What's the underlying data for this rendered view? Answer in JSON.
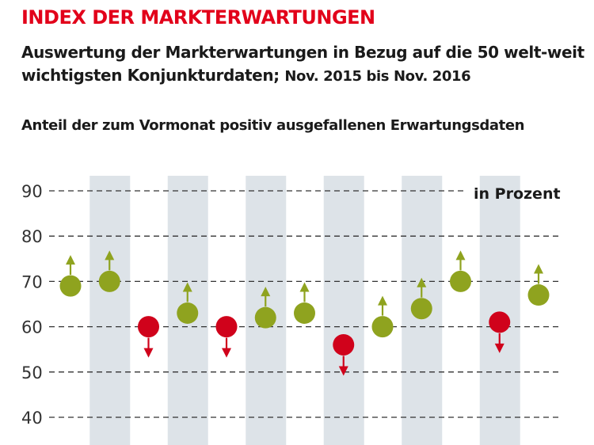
{
  "header": {
    "title": "INDEX DER MARKTERWARTUNGEN",
    "subtitle_main": "Auswertung der Markterwartungen in Bezug auf die 50 welt-weit wichtigsten Konjunkturdaten;",
    "subtitle_range_1": "Nov. 2015",
    "subtitle_range_sep": " bis ",
    "subtitle_range_2": "Nov. 2016",
    "chart_heading": "Anteil der zum Vormonat positiv ausgefallenen Erwartungsdaten"
  },
  "colors": {
    "title": "#e2001a",
    "positive": "#8fa31f",
    "negative": "#d0021b",
    "band": "#dde3e8",
    "grid": "#333333"
  },
  "chart_data": {
    "type": "scatter",
    "title": "INDEX DER MARKTERWARTUNGEN",
    "unit_label": "in Prozent",
    "ylim": [
      40,
      90
    ],
    "yticks": [
      40,
      50,
      60,
      70,
      80,
      90
    ],
    "grid": true,
    "alternating_bands": true,
    "series": [
      {
        "values": [
          69,
          70,
          60,
          63,
          60,
          62,
          63,
          56,
          60,
          64,
          70,
          61,
          67
        ],
        "direction": [
          "up",
          "up",
          "down",
          "up",
          "down",
          "up",
          "up",
          "down",
          "up",
          "up",
          "up",
          "down",
          "up"
        ]
      }
    ]
  }
}
